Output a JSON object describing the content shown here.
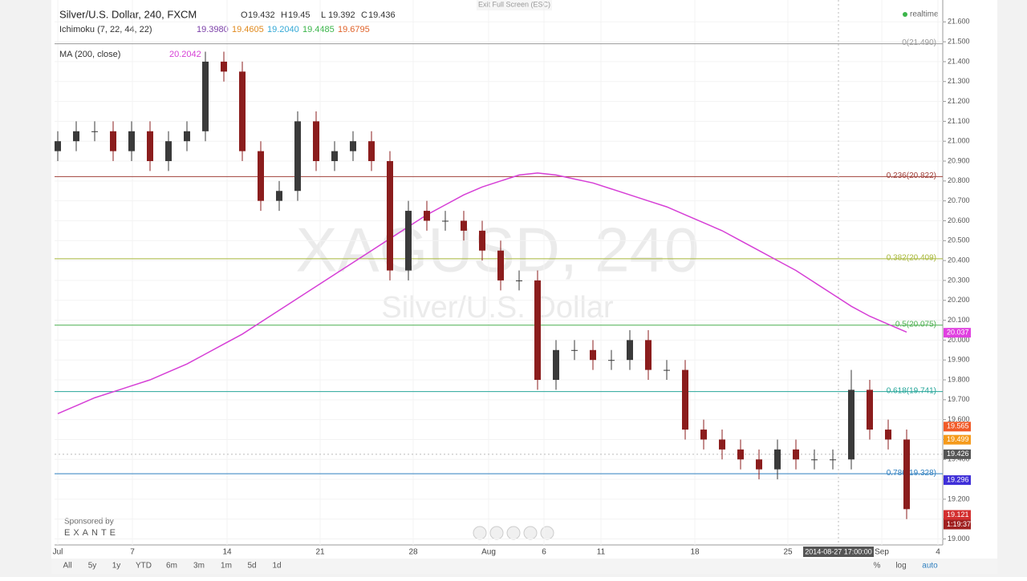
{
  "header": {
    "title": "Silver/U.S. Dollar, 240, FXCM",
    "ohlc": [
      {
        "key": "O",
        "value": 19.432
      },
      {
        "key": "H",
        "value": 19.45
      },
      {
        "key": "L",
        "value": 19.392
      },
      {
        "key": "C",
        "value": 19.436
      }
    ],
    "realtime": "realtime",
    "exit": "Exit Full Screen (ESC)"
  },
  "ichimoku": {
    "label": "Ichimoku (7, 22, 44, 22)",
    "values": [
      {
        "value": 19.398,
        "label": "19.3980",
        "color": "#7b3fa8"
      },
      {
        "value": 19.4605,
        "label": "19.4605",
        "color": "#e08a1e"
      },
      {
        "value": 19.204,
        "label": "19.2040",
        "color": "#35a9d6"
      },
      {
        "value": 19.4485,
        "label": "19.4485",
        "color": "#3bb54a"
      },
      {
        "value": 19.6795,
        "label": "19.6795",
        "color": "#e0632a"
      }
    ]
  },
  "ma": {
    "label": "MA (200, close)",
    "value": 20.2042,
    "color": "#d63fd6"
  },
  "watermark": [
    "XAGUSD, 240",
    "Silver/U.S. Dollar"
  ],
  "sponsor": {
    "text": "Sponsored by",
    "brand": "EXANTE"
  },
  "chart": {
    "type": "candlestick",
    "up_color": "#3a3a3a",
    "down_color": "#8b1d1d",
    "open": [
      20.95,
      21.0,
      21.05,
      21.05,
      20.95,
      21.05,
      20.9,
      21.0,
      21.05,
      21.4,
      21.35,
      20.95,
      20.7,
      20.75,
      21.1,
      20.9,
      20.95,
      21.0,
      20.9,
      20.35,
      20.65,
      20.6,
      20.6,
      20.55,
      20.45,
      20.3,
      20.3,
      19.8,
      19.95,
      19.95,
      19.9,
      19.9,
      20.0,
      19.85,
      19.85,
      19.55,
      19.5,
      19.45,
      19.4,
      19.35,
      19.45,
      19.4,
      19.4,
      19.4,
      19.75,
      19.55,
      19.5
    ],
    "high": [
      21.05,
      21.1,
      21.1,
      21.1,
      21.1,
      21.1,
      21.05,
      21.1,
      21.45,
      21.45,
      21.4,
      21.0,
      20.8,
      21.15,
      21.15,
      21.0,
      21.05,
      21.05,
      20.95,
      20.7,
      20.7,
      20.65,
      20.65,
      20.6,
      20.5,
      20.35,
      20.35,
      20.0,
      20.0,
      20.0,
      19.95,
      20.05,
      20.05,
      19.9,
      19.9,
      19.6,
      19.55,
      19.5,
      19.45,
      19.5,
      19.5,
      19.45,
      19.45,
      19.85,
      19.8,
      19.6,
      19.55
    ],
    "low": [
      20.9,
      20.95,
      21.0,
      20.9,
      20.9,
      20.85,
      20.85,
      20.95,
      21.0,
      21.3,
      20.9,
      20.65,
      20.65,
      20.7,
      20.85,
      20.85,
      20.9,
      20.85,
      20.3,
      20.3,
      20.55,
      20.55,
      20.5,
      20.4,
      20.25,
      20.25,
      19.75,
      19.75,
      19.9,
      19.85,
      19.85,
      19.85,
      19.8,
      19.8,
      19.5,
      19.45,
      19.4,
      19.35,
      19.3,
      19.3,
      19.35,
      19.35,
      19.35,
      19.35,
      19.5,
      19.45,
      19.1
    ],
    "close": [
      21.0,
      21.05,
      21.05,
      20.95,
      21.05,
      20.9,
      21.0,
      21.05,
      21.4,
      21.35,
      20.95,
      20.7,
      20.75,
      21.1,
      20.9,
      20.95,
      21.0,
      20.9,
      20.35,
      20.65,
      20.6,
      20.6,
      20.55,
      20.45,
      20.3,
      20.3,
      19.8,
      19.95,
      19.95,
      19.9,
      19.9,
      20.0,
      19.85,
      19.85,
      19.55,
      19.5,
      19.45,
      19.4,
      19.35,
      19.45,
      19.4,
      19.4,
      19.4,
      19.75,
      19.55,
      19.5,
      19.15
    ],
    "ma200": [
      19.63,
      19.67,
      19.71,
      19.74,
      19.77,
      19.8,
      19.84,
      19.88,
      19.93,
      19.98,
      20.03,
      20.09,
      20.15,
      20.21,
      20.27,
      20.33,
      20.39,
      20.45,
      20.51,
      20.57,
      20.63,
      20.68,
      20.73,
      20.77,
      20.8,
      20.83,
      20.84,
      20.83,
      20.81,
      20.79,
      20.76,
      20.73,
      20.7,
      20.67,
      20.63,
      20.59,
      20.55,
      20.5,
      20.45,
      20.4,
      20.35,
      20.29,
      20.23,
      20.17,
      20.12,
      20.08,
      20.04
    ],
    "ylim": [
      18.97,
      21.71
    ],
    "yticks": [
      {
        "value": 21.6,
        "label": "21.600"
      },
      {
        "value": 21.5,
        "label": "21.500"
      },
      {
        "value": 21.4,
        "label": "21.400"
      },
      {
        "value": 21.3,
        "label": "21.300"
      },
      {
        "value": 21.2,
        "label": "21.200"
      },
      {
        "value": 21.1,
        "label": "21.100"
      },
      {
        "value": 21.0,
        "label": "21.000"
      },
      {
        "value": 20.9,
        "label": "20.900"
      },
      {
        "value": 20.8,
        "label": "20.800"
      },
      {
        "value": 20.7,
        "label": "20.700"
      },
      {
        "value": 20.6,
        "label": "20.600"
      },
      {
        "value": 20.5,
        "label": "20.500"
      },
      {
        "value": 20.4,
        "label": "20.400"
      },
      {
        "value": 20.3,
        "label": "20.300"
      },
      {
        "value": 20.2,
        "label": "20.200"
      },
      {
        "value": 20.1,
        "label": "20.100"
      },
      {
        "value": 20.0,
        "label": "20.000"
      },
      {
        "value": 19.9,
        "label": "19.900"
      },
      {
        "value": 19.8,
        "label": "19.800"
      },
      {
        "value": 19.7,
        "label": "19.700"
      },
      {
        "value": 19.6,
        "label": "19.600"
      },
      {
        "value": 19.5,
        "label": "19.500"
      },
      {
        "value": 19.4,
        "label": "19.400"
      },
      {
        "value": 19.3,
        "label": "19.300"
      },
      {
        "value": 19.2,
        "label": "19.200"
      },
      {
        "value": 19.1,
        "label": "19.100"
      },
      {
        "value": 19.0,
        "label": "19.000"
      }
    ],
    "x_labels": [
      "Jul",
      "7",
      "14",
      "21",
      "28",
      "Aug",
      "6",
      "11",
      "18",
      "25",
      "Sep",
      "4"
    ],
    "crosshair_label": "2014-08-27 17:00:00",
    "fib": [
      {
        "value": 21.49,
        "label": "0(21.490)",
        "color": "#9a9a9a"
      },
      {
        "value": 20.822,
        "label": "0.236(20.822)",
        "color": "#a0403a"
      },
      {
        "value": 20.409,
        "label": "0.382(20.409)",
        "color": "#a8b83a"
      },
      {
        "value": 20.075,
        "label": "0.5(20.075)",
        "color": "#4caf50"
      },
      {
        "value": 19.741,
        "label": "0.618(19.741)",
        "color": "#26a69a"
      },
      {
        "value": 19.328,
        "label": "0.786(19.328)",
        "color": "#2f7fbf"
      }
    ],
    "price_tags": [
      {
        "value": 20.037,
        "color": "#e040e0"
      },
      {
        "value": 19.565,
        "color": "#f05a28"
      },
      {
        "value": 19.499,
        "color": "#f59a1b"
      },
      {
        "value": 19.426,
        "color": "#555555"
      },
      {
        "value": 19.296,
        "color": "#3f2fd8"
      },
      {
        "value": 19.121,
        "color": "#d32f2f"
      }
    ],
    "countdown": "1:19:37"
  },
  "toolbar": {
    "ranges": [
      "All",
      "5y",
      "1y",
      "YTD",
      "6m",
      "3m",
      "1m",
      "5d",
      "1d"
    ],
    "right": [
      "%",
      "log",
      "auto"
    ]
  }
}
